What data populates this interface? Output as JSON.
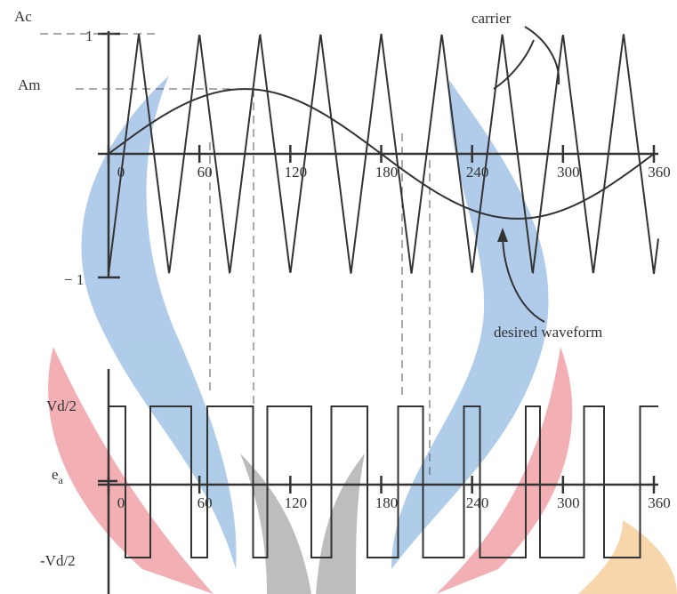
{
  "top_plot": {
    "y_labels": {
      "ac": "Ac",
      "am": "Am",
      "one": "1",
      "minus_one": "− 1"
    },
    "x_tick_labels": [
      "0",
      "60",
      "120",
      "180",
      "240",
      "300",
      "360"
    ]
  },
  "annotations": {
    "carrier": "carrier",
    "desired_waveform": "desired waveform"
  },
  "bottom_plot": {
    "y_labels": {
      "high": "Vd/2",
      "output": "e",
      "output_subscript": "a",
      "low": "-Vd/2"
    },
    "x_tick_labels": [
      "0",
      "60",
      "120",
      "180",
      "240",
      "300",
      "360"
    ]
  }
}
